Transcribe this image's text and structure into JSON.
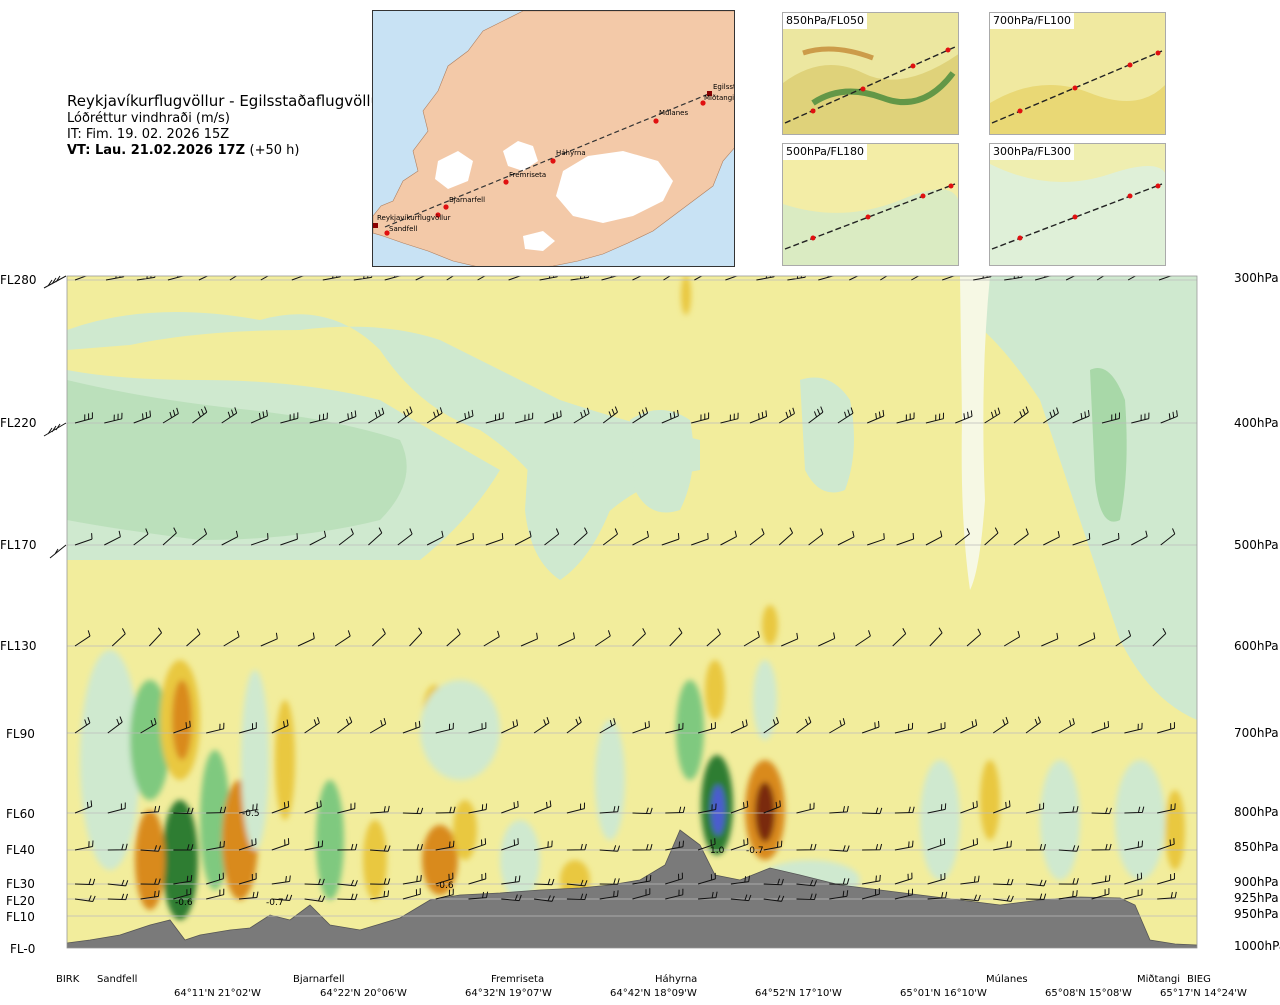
{
  "header": {
    "title": "Reykjavíkurflugvöllur - Egilsstaðaflugvöllur",
    "subtitle": "Lóðréttur vindhraði (m/s)",
    "it": "IT: Fim. 19. 02. 2026 15Z",
    "vt": "VT: Lau. 21.02.2026 17Z",
    "vt_offset": "(+50 h)"
  },
  "map": {
    "places": [
      "Reykjavíkurflugvöllur",
      "Sandfell",
      "Bjarnarfell",
      "Fremriseta",
      "Háhyrna",
      "Múlanes",
      "Egilsstaðir",
      "Miðtangi"
    ],
    "colors": {
      "sea": "#c8e2f4",
      "land": "#f3c9a8",
      "ice": "#ffffff",
      "route": "#333333",
      "point": "#e01010"
    }
  },
  "minimaps": [
    {
      "label": "850hPa/FL050"
    },
    {
      "label": "700hPa/FL100"
    },
    {
      "label": "500hPa/FL180"
    },
    {
      "label": "300hPa/FL300"
    }
  ],
  "chart_data": {
    "type": "heatmap",
    "title": "Reykjavíkurflugvöllur - Egilsstaðaflugvöllur",
    "quantity": "Lóðréttur vindhraði (m/s)",
    "flight_levels": [
      "FL280",
      "FL220",
      "FL170",
      "FL130",
      "FL90",
      "FL60",
      "FL40",
      "FL30",
      "FL20",
      "FL10",
      "FL-0"
    ],
    "pressure_levels": [
      "300hPa",
      "400hPa",
      "500hPa",
      "600hPa",
      "700hPa",
      "800hPa",
      "850hPa",
      "900hPa",
      "925hPa",
      "950hPa",
      "1000hPa"
    ],
    "x_locations": [
      "BIRK",
      "Sandfell",
      "Bjarnarfell",
      "Fremriseta",
      "Háhyrna",
      "Múlanes",
      "Miðtangi",
      "BIEG"
    ],
    "x_coordinates": [
      "64°11'N 21°02'W",
      "64°22'N 20°06'W",
      "64°32'N 19°07'W",
      "64°42'N 18°09'W",
      "64°52'N 17°10'W",
      "65°01'N 16°10'W",
      "65°08'N 15°08'W",
      "65°17'N 14°24'W"
    ],
    "value_labels": [
      {
        "text": "-0.6",
        "level": "FL20",
        "near": "64°11'N 21°02'W"
      },
      {
        "text": "-0.5",
        "level": "FL60",
        "near": "64°11'N 21°02'W"
      },
      {
        "text": "-0.7",
        "level": "FL20",
        "near": "Bjarnarfell"
      },
      {
        "text": "-0.6",
        "level": "FL30",
        "near": "64°32'N 19°07'W"
      },
      {
        "text": "1.0",
        "level": "FL40",
        "near": "Háhyrna"
      },
      {
        "text": "-0.7",
        "level": "FL40",
        "near": "64°52'N 17°10'W"
      }
    ],
    "colors": {
      "strong_up": "#2e7d32",
      "up": "#7fc97f",
      "weak_up": "#cfe9cf",
      "neutral": "#f2ed9c",
      "weak_down": "#e9c840",
      "down": "#d98a1c",
      "strong_down": "#7a2a10",
      "extreme_up": "#4b5bd0",
      "terrain": "#7a7a7a"
    }
  }
}
